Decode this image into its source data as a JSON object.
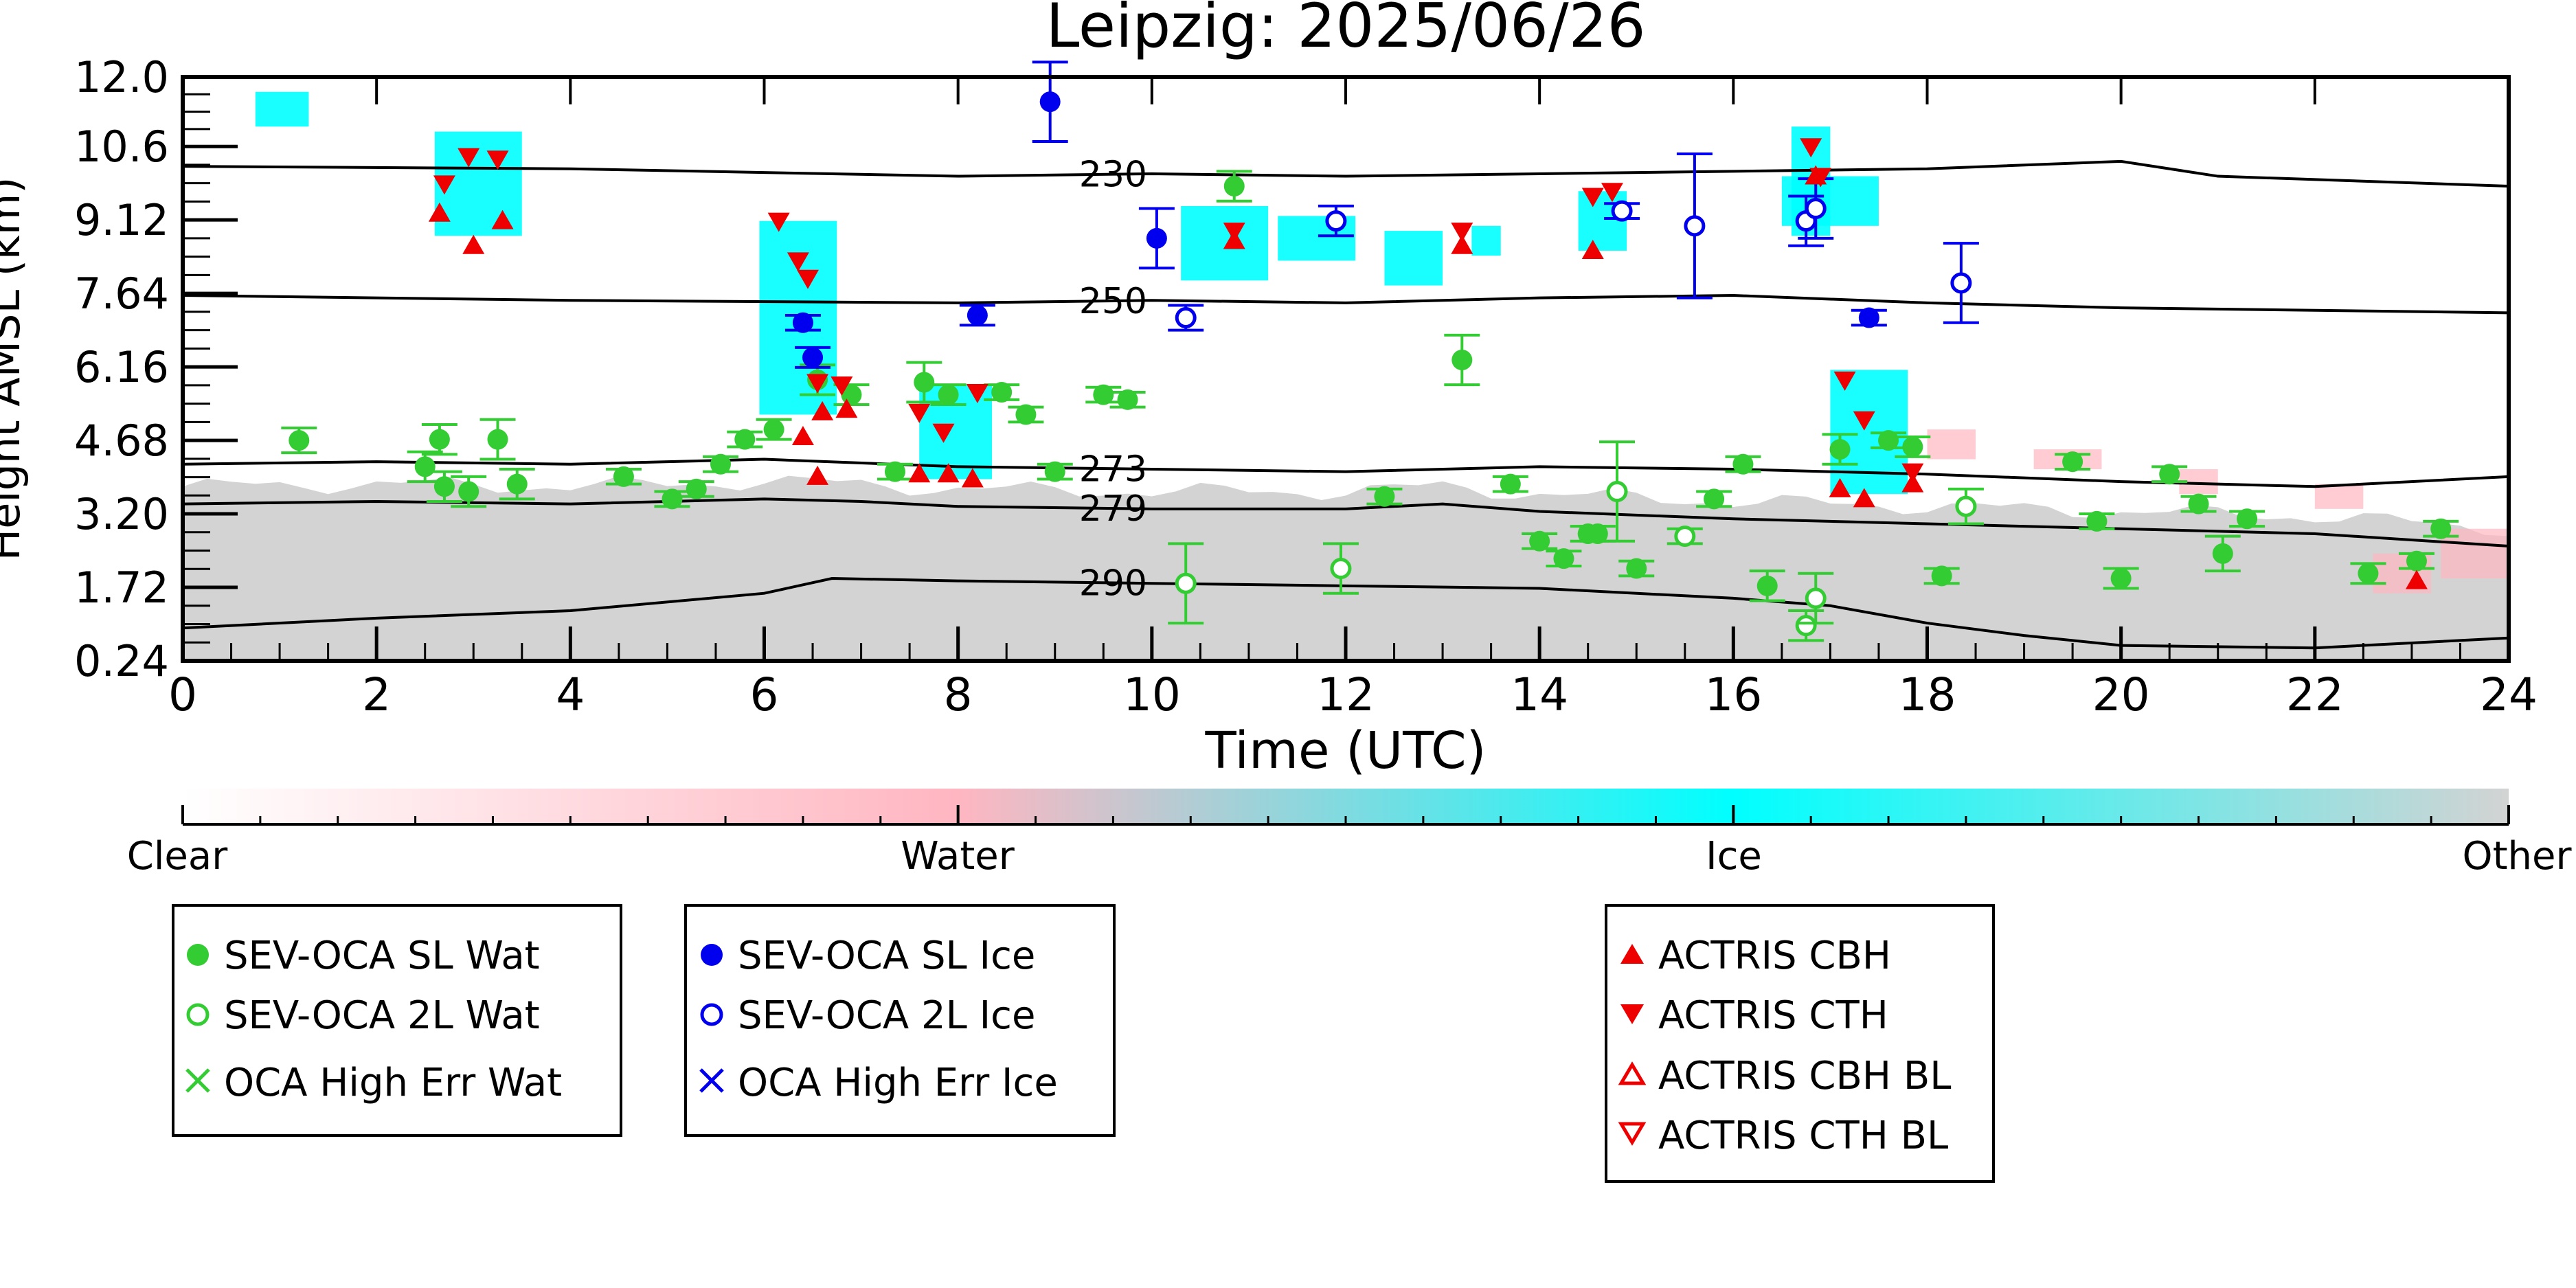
{
  "chart_data": {
    "type": "scatter",
    "title": "Leipzig: 2025/06/26",
    "xlabel": "Time (UTC)",
    "ylabel": "Height AMSL (km)",
    "xlim": [
      0,
      24
    ],
    "ylim": [
      0.24,
      12.0
    ],
    "x_ticks": [
      "0",
      "2",
      "4",
      "6",
      "8",
      "10",
      "12",
      "14",
      "16",
      "18",
      "20",
      "22",
      "24"
    ],
    "y_ticks": [
      "0.24",
      "1.72",
      "3.20",
      "4.68",
      "6.16",
      "7.64",
      "9.12",
      "10.6",
      "12.0"
    ],
    "colorbar": {
      "labels": [
        "Clear",
        "Water",
        "Ice",
        "Other"
      ],
      "colors": [
        "#ffffff",
        "#ffb6c1",
        "#00ffff",
        "#d3d3d3"
      ]
    },
    "isotherms": [
      {
        "label": "230",
        "label_x": 9.6,
        "x": [
          0,
          4,
          8,
          10,
          12,
          14,
          16,
          18,
          20,
          21,
          24
        ],
        "y": [
          10.2,
          10.15,
          10.0,
          10.05,
          10.0,
          10.05,
          10.1,
          10.15,
          10.3,
          10.0,
          9.8
        ]
      },
      {
        "label": "250",
        "label_x": 9.6,
        "x": [
          0,
          4,
          8,
          10,
          12,
          14,
          16,
          18,
          20,
          22,
          24
        ],
        "y": [
          7.6,
          7.5,
          7.45,
          7.5,
          7.45,
          7.55,
          7.6,
          7.45,
          7.35,
          7.3,
          7.25
        ]
      },
      {
        "label": "273",
        "label_x": 9.6,
        "x": [
          0,
          2,
          4,
          6,
          8,
          10,
          12,
          14,
          16,
          18,
          20,
          22,
          24
        ],
        "y": [
          4.2,
          4.25,
          4.2,
          4.3,
          4.15,
          4.1,
          4.05,
          4.15,
          4.1,
          4.0,
          3.85,
          3.75,
          3.95
        ]
      },
      {
        "label": "279",
        "label_x": 9.6,
        "x": [
          0,
          2,
          4,
          6,
          7,
          8,
          10,
          12,
          13,
          14,
          16,
          18,
          20,
          22,
          24
        ],
        "y": [
          3.4,
          3.45,
          3.4,
          3.5,
          3.45,
          3.35,
          3.3,
          3.3,
          3.4,
          3.25,
          3.1,
          3.0,
          2.9,
          2.8,
          2.55
        ]
      },
      {
        "label": "290",
        "label_x": 9.6,
        "x": [
          0,
          2,
          4,
          6,
          6.7,
          8,
          10,
          12,
          14,
          16,
          17,
          18,
          19,
          20,
          22,
          24
        ],
        "y": [
          0.9,
          1.1,
          1.25,
          1.6,
          1.9,
          1.85,
          1.8,
          1.75,
          1.7,
          1.5,
          1.35,
          1.0,
          0.75,
          0.55,
          0.5,
          0.7
        ]
      }
    ],
    "series": [
      {
        "name": "SEV-OCA SL Wat",
        "color": "#33cc33",
        "marker": "filled-circle",
        "points": [
          [
            1.2,
            4.68,
            0.25
          ],
          [
            2.5,
            4.15,
            0.3
          ],
          [
            2.65,
            4.7,
            0.3
          ],
          [
            2.7,
            3.75,
            0.3
          ],
          [
            2.95,
            3.65,
            0.3
          ],
          [
            3.25,
            4.7,
            0.4
          ],
          [
            3.45,
            3.8,
            0.3
          ],
          [
            4.55,
            3.95,
            0.15
          ],
          [
            5.05,
            3.5,
            0.15
          ],
          [
            5.3,
            3.7,
            0.15
          ],
          [
            5.55,
            4.2,
            0.15
          ],
          [
            5.8,
            4.7,
            0.15
          ],
          [
            6.1,
            4.9,
            0.2
          ],
          [
            6.55,
            5.9,
            0.3
          ],
          [
            6.9,
            5.6,
            0.2
          ],
          [
            7.35,
            4.05,
            0.15
          ],
          [
            7.65,
            5.85,
            0.4
          ],
          [
            7.9,
            5.6,
            0.2
          ],
          [
            8.45,
            5.65,
            0.15
          ],
          [
            8.7,
            5.2,
            0.15
          ],
          [
            9.0,
            4.05,
            0.15
          ],
          [
            9.5,
            5.6,
            0.15
          ],
          [
            9.75,
            5.5,
            0.15
          ],
          [
            10.85,
            9.8,
            0.3
          ],
          [
            12.4,
            3.55,
            0.15
          ],
          [
            13.2,
            6.3,
            0.5
          ],
          [
            13.7,
            3.8,
            0.15
          ],
          [
            14.0,
            2.65,
            0.15
          ],
          [
            14.25,
            2.3,
            0.15
          ],
          [
            14.5,
            2.8,
            0.15
          ],
          [
            14.6,
            2.8,
            0.15
          ],
          [
            15.0,
            2.1,
            0.15
          ],
          [
            15.8,
            3.5,
            0.15
          ],
          [
            16.1,
            4.2,
            0.15
          ],
          [
            16.35,
            1.75,
            0.3
          ],
          [
            17.1,
            4.5,
            0.3
          ],
          [
            17.6,
            4.68,
            0.15
          ],
          [
            17.85,
            4.55,
            0.2
          ],
          [
            18.15,
            1.95,
            0.15
          ],
          [
            19.5,
            4.25,
            0.15
          ],
          [
            19.75,
            3.05,
            0.15
          ],
          [
            20.0,
            1.9,
            0.2
          ],
          [
            20.5,
            4.0,
            0.15
          ],
          [
            20.8,
            3.4,
            0.15
          ],
          [
            21.05,
            2.4,
            0.35
          ],
          [
            21.3,
            3.1,
            0.15
          ],
          [
            22.55,
            2.0,
            0.2
          ],
          [
            23.05,
            2.25,
            0.15
          ],
          [
            23.3,
            2.9,
            0.15
          ]
        ]
      },
      {
        "name": "SEV-OCA 2L Wat",
        "color": "#33cc33",
        "marker": "open-circle",
        "points": [
          [
            10.35,
            1.8,
            0.8
          ],
          [
            11.95,
            2.1,
            0.5
          ],
          [
            14.8,
            3.65,
            1.0
          ],
          [
            15.5,
            2.75,
            0.15
          ],
          [
            16.75,
            0.95,
            0.3
          ],
          [
            16.85,
            1.5,
            0.5
          ],
          [
            18.4,
            3.35,
            0.35
          ]
        ]
      },
      {
        "name": "OCA High Err Wat",
        "color": "#33cc33",
        "marker": "x",
        "points": []
      },
      {
        "name": "SEV-OCA SL Ice",
        "color": "#0000ee",
        "marker": "filled-circle",
        "points": [
          [
            8.95,
            11.5,
            0.8
          ],
          [
            10.05,
            8.75,
            0.6
          ],
          [
            6.4,
            7.05,
            0.15
          ],
          [
            6.5,
            6.35,
            0.2
          ],
          [
            8.2,
            7.2,
            0.2
          ],
          [
            17.4,
            7.15,
            0.15
          ]
        ]
      },
      {
        "name": "SEV-OCA 2L Ice",
        "color": "#0000ee",
        "marker": "open-circle",
        "points": [
          [
            10.35,
            7.15,
            0.25
          ],
          [
            11.9,
            9.1,
            0.3
          ],
          [
            14.85,
            9.3,
            0.15
          ],
          [
            15.6,
            9.0,
            1.45
          ],
          [
            16.75,
            9.1,
            0.5
          ],
          [
            16.85,
            9.35,
            0.6
          ],
          [
            18.35,
            7.85,
            0.8
          ]
        ]
      },
      {
        "name": "OCA High Err Ice",
        "color": "#0000ee",
        "marker": "x",
        "points": []
      },
      {
        "name": "ACTRIS CBH",
        "color": "#ee0000",
        "marker": "triangle-up",
        "points": [
          [
            2.65,
            9.25
          ],
          [
            3.3,
            9.1
          ],
          [
            3.0,
            8.6
          ],
          [
            6.4,
            4.75
          ],
          [
            6.55,
            3.95
          ],
          [
            6.6,
            5.25
          ],
          [
            6.85,
            5.3
          ],
          [
            7.6,
            4.0
          ],
          [
            7.9,
            4.0
          ],
          [
            8.15,
            3.9
          ],
          [
            10.85,
            8.7
          ],
          [
            13.2,
            8.6
          ],
          [
            14.55,
            8.5
          ],
          [
            16.85,
            10.0
          ],
          [
            17.1,
            3.7
          ],
          [
            17.35,
            3.5
          ],
          [
            17.85,
            3.8
          ],
          [
            23.05,
            1.85
          ]
        ]
      },
      {
        "name": "ACTRIS CTH",
        "color": "#ee0000",
        "marker": "triangle-down",
        "points": [
          [
            2.7,
            9.85
          ],
          [
            2.95,
            10.4
          ],
          [
            3.25,
            10.35
          ],
          [
            6.15,
            9.1
          ],
          [
            6.35,
            8.3
          ],
          [
            6.45,
            7.95
          ],
          [
            6.55,
            5.85
          ],
          [
            6.8,
            5.8
          ],
          [
            7.6,
            5.25
          ],
          [
            7.85,
            4.85
          ],
          [
            8.2,
            5.65
          ],
          [
            10.85,
            8.9
          ],
          [
            13.2,
            8.9
          ],
          [
            14.55,
            9.6
          ],
          [
            14.75,
            9.7
          ],
          [
            16.8,
            10.6
          ],
          [
            16.9,
            10.0
          ],
          [
            17.15,
            5.9
          ],
          [
            17.35,
            5.1
          ],
          [
            17.85,
            4.05
          ]
        ]
      },
      {
        "name": "ACTRIS CBH BL",
        "color": "#ee0000",
        "marker": "open-triangle-up",
        "points": []
      },
      {
        "name": "ACTRIS CTH BL",
        "color": "#ee0000",
        "marker": "open-triangle-down",
        "points": []
      }
    ],
    "legends": [
      {
        "entries": [
          "SEV-OCA SL Wat",
          "SEV-OCA 2L Wat",
          "OCA High Err Wat"
        ]
      },
      {
        "entries": [
          "SEV-OCA SL Ice",
          "SEV-OCA 2L Ice",
          "OCA High Err Ice"
        ]
      },
      {
        "entries": [
          "ACTRIS CBH",
          "ACTRIS CTH",
          "ACTRIS CBH BL",
          "ACTRIS CTH BL"
        ]
      }
    ],
    "classification_regions": [
      {
        "class": "Other",
        "x": [
          0,
          24
        ],
        "profile": "boundary-layer",
        "description_hidden": true
      },
      {
        "class": "Ice",
        "rects": [
          [
            0.75,
            11.0,
            1.3,
            11.7
          ],
          [
            2.6,
            8.8,
            3.5,
            10.9
          ],
          [
            5.95,
            5.2,
            6.75,
            9.1
          ],
          [
            7.6,
            3.9,
            8.35,
            5.8
          ],
          [
            10.3,
            7.9,
            11.2,
            9.4
          ],
          [
            11.3,
            8.3,
            12.1,
            9.2
          ],
          [
            12.4,
            7.8,
            13.0,
            8.9
          ],
          [
            13.3,
            8.4,
            13.6,
            9.0
          ],
          [
            14.4,
            8.5,
            14.9,
            9.7
          ],
          [
            16.6,
            8.8,
            17.0,
            11.0
          ],
          [
            17.0,
            3.6,
            17.8,
            6.1
          ],
          [
            16.5,
            9.0,
            17.5,
            10.0
          ]
        ]
      },
      {
        "class": "Water",
        "rects": [
          [
            18.0,
            4.3,
            18.5,
            4.9
          ],
          [
            19.1,
            4.1,
            19.8,
            4.5
          ],
          [
            20.6,
            3.6,
            21.0,
            4.1
          ],
          [
            22.0,
            3.3,
            22.5,
            3.8
          ],
          [
            22.6,
            1.6,
            23.2,
            2.4
          ],
          [
            23.3,
            1.9,
            24.0,
            2.9
          ]
        ]
      }
    ]
  }
}
